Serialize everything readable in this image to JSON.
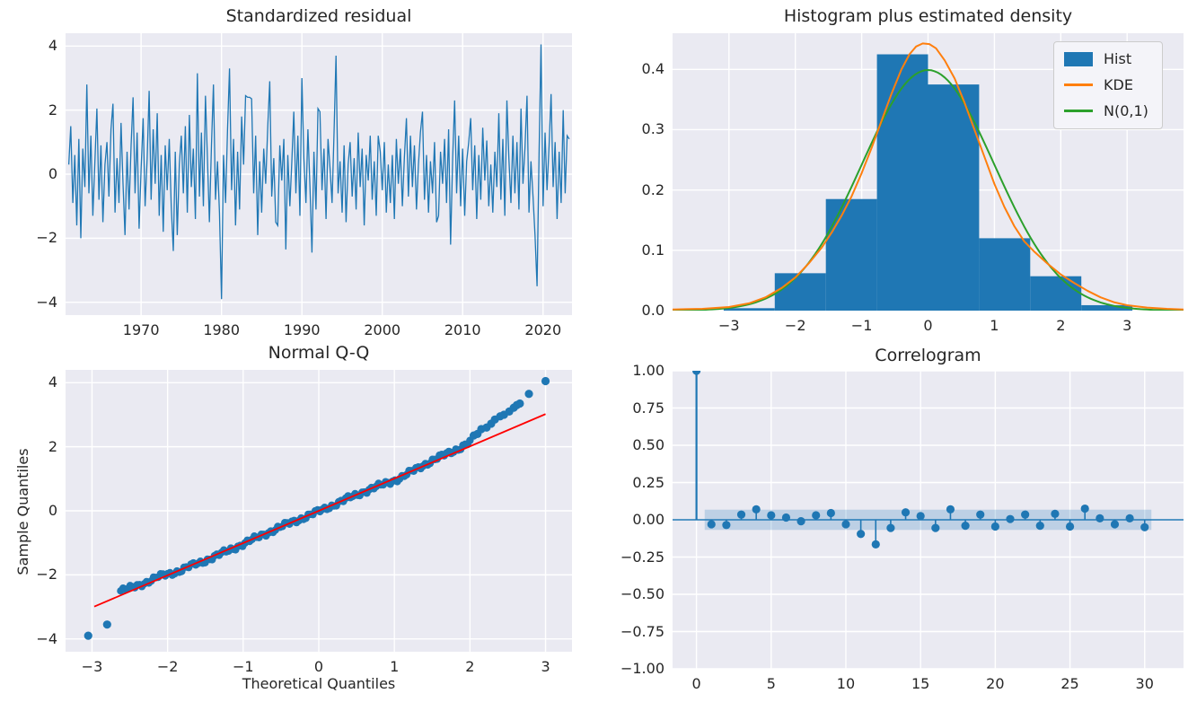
{
  "figure": {
    "background": "#ffffff",
    "axes_background": "#eaeaf2",
    "grid_color": "#ffffff",
    "text_color": "#262626"
  },
  "chart_data": [
    {
      "type": "line",
      "title": "Standardized residual",
      "color": "#1f77b4",
      "xlim": [
        1960.6,
        2023.6
      ],
      "ylim": [
        -4.4,
        4.4
      ],
      "xticks": {
        "values": [
          1970,
          1980,
          1990,
          2000,
          2010,
          2020
        ],
        "labels": [
          "1970",
          "1980",
          "1990",
          "2000",
          "2010",
          "2020"
        ]
      },
      "yticks": {
        "values": [
          -4,
          -2,
          0,
          2,
          4
        ],
        "labels": [
          "−4",
          "−2",
          "0",
          "2",
          "4"
        ]
      },
      "x_start": 1961.0,
      "x_step": 0.25,
      "values": [
        0.3,
        1.5,
        -0.9,
        0.6,
        -1.6,
        1.1,
        -2.0,
        0.8,
        -0.4,
        2.8,
        -0.6,
        1.2,
        -1.3,
        0.4,
        2.05,
        -0.8,
        0.9,
        -1.5,
        0.3,
        1.0,
        -0.7,
        1.4,
        2.2,
        -1.2,
        0.5,
        -0.9,
        1.6,
        -0.3,
        -1.9,
        0.7,
        -1.1,
        0.9,
        2.4,
        -0.6,
        1.3,
        -1.7,
        0.2,
        1.75,
        -1.0,
        0.5,
        2.6,
        -0.8,
        1.4,
        -0.3,
        1.9,
        -1.3,
        0.6,
        -1.8,
        0.9,
        -0.5,
        1.1,
        -1.0,
        -2.4,
        0.7,
        -1.9,
        0.3,
        1.2,
        -0.6,
        1.5,
        -1.2,
        1.85,
        -0.4,
        0.8,
        -1.4,
        3.15,
        -0.7,
        1.3,
        -1.0,
        2.45,
        0.5,
        -1.5,
        0.9,
        2.8,
        -0.8,
        0.4,
        -1.2,
        -3.9,
        0.6,
        -0.9,
        1.4,
        3.3,
        -0.5,
        1.1,
        -1.6,
        0.7,
        -1.1,
        1.8,
        0.3,
        2.45,
        2.4,
        2.4,
        2.35,
        -0.6,
        1.2,
        -1.9,
        0.4,
        -1.2,
        0.8,
        -0.3,
        1.5,
        2.9,
        -0.7,
        0.5,
        -1.5,
        -1.6,
        0.9,
        -0.2,
        1.1,
        -2.35,
        0.6,
        -1.0,
        0.4,
        1.95,
        -0.6,
        1.2,
        -1.3,
        3.0,
        0.5,
        -0.9,
        1.4,
        -0.4,
        -2.45,
        0.7,
        -1.1,
        2.05,
        1.95,
        -0.5,
        0.8,
        -1.4,
        1.1,
        0.2,
        -0.9,
        1.3,
        3.7,
        -0.6,
        0.4,
        -1.2,
        0.9,
        -1.5,
        0.3,
        1.0,
        -0.7,
        0.5,
        -1.1,
        1.3,
        -0.4,
        0.8,
        -1.6,
        0.6,
        -0.2,
        1.2,
        -0.8,
        0.4,
        -1.3,
        1.2,
        0.7,
        -0.5,
        1.0,
        -1.2,
        0.3,
        -0.9,
        0.6,
        -1.4,
        1.1,
        -0.3,
        0.8,
        -1.0,
        0.5,
        1.75,
        -0.7,
        1.2,
        -0.4,
        0.9,
        -1.1,
        0.3,
        1.3,
        1.95,
        -0.8,
        0.6,
        -1.2,
        0.4,
        -0.6,
        1.0,
        -1.5,
        -1.3,
        0.7,
        -0.3,
        1.1,
        -0.9,
        1.4,
        -2.2,
        0.5,
        2.3,
        -0.6,
        1.2,
        -1.0,
        0.8,
        -1.3,
        0.4,
        1.0,
        1.75,
        -0.5,
        0.9,
        -1.4,
        0.6,
        -0.8,
        1.45,
        -0.2,
        1.05,
        -1.0,
        0.3,
        -1.2,
        0.7,
        -0.4,
        1.9,
        -0.8,
        1.1,
        -1.3,
        2.3,
        0.5,
        -0.9,
        1.2,
        -0.6,
        1.0,
        -1.1,
        2.05,
        -0.3,
        0.8,
        2.45,
        -1.2,
        0.4,
        -0.7,
        -1.9,
        -3.5,
        0.6,
        4.05,
        -1.0,
        1.3,
        -0.5,
        0.9,
        2.5,
        -0.4,
        1.0,
        -1.4,
        0.7,
        -0.9,
        2.0,
        -0.6,
        1.2,
        1.1
      ]
    },
    {
      "type": "histogram",
      "title": "Histogram plus estimated density",
      "xlim": [
        -3.85,
        3.85
      ],
      "ylim": [
        0,
        0.46
      ],
      "xticks": {
        "values": [
          -3,
          -2,
          -1,
          0,
          1,
          2,
          3
        ],
        "labels": [
          "−3",
          "−2",
          "−1",
          "0",
          "1",
          "2",
          "3"
        ]
      },
      "yticks": {
        "values": [
          0,
          0.1,
          0.2,
          0.3,
          0.4
        ],
        "labels": [
          "0.0",
          "0.1",
          "0.2",
          "0.3",
          "0.4"
        ]
      },
      "bar_color": "#1f77b4",
      "bin_edges": [
        -3.08,
        -2.31,
        -1.54,
        -0.77,
        0,
        0.77,
        1.54,
        2.31,
        3.08
      ],
      "bin_heights": [
        0.004,
        0.062,
        0.185,
        0.425,
        0.375,
        0.12,
        0.057,
        0.009
      ],
      "kde": {
        "color": "#ff7f0e",
        "points": [
          [
            -3.85,
            0.002
          ],
          [
            -3.4,
            0.003
          ],
          [
            -3.0,
            0.006
          ],
          [
            -2.7,
            0.012
          ],
          [
            -2.45,
            0.022
          ],
          [
            -2.2,
            0.038
          ],
          [
            -2.0,
            0.055
          ],
          [
            -1.8,
            0.078
          ],
          [
            -1.6,
            0.105
          ],
          [
            -1.45,
            0.13
          ],
          [
            -1.3,
            0.158
          ],
          [
            -1.15,
            0.19
          ],
          [
            -1.0,
            0.228
          ],
          [
            -0.85,
            0.27
          ],
          [
            -0.7,
            0.315
          ],
          [
            -0.55,
            0.36
          ],
          [
            -0.4,
            0.4
          ],
          [
            -0.28,
            0.425
          ],
          [
            -0.18,
            0.438
          ],
          [
            -0.08,
            0.443
          ],
          [
            0.02,
            0.442
          ],
          [
            0.12,
            0.435
          ],
          [
            0.25,
            0.415
          ],
          [
            0.4,
            0.385
          ],
          [
            0.55,
            0.345
          ],
          [
            0.7,
            0.3
          ],
          [
            0.85,
            0.255
          ],
          [
            1.0,
            0.21
          ],
          [
            1.15,
            0.172
          ],
          [
            1.3,
            0.14
          ],
          [
            1.45,
            0.115
          ],
          [
            1.6,
            0.098
          ],
          [
            1.8,
            0.078
          ],
          [
            2.0,
            0.06
          ],
          [
            2.2,
            0.046
          ],
          [
            2.4,
            0.033
          ],
          [
            2.6,
            0.022
          ],
          [
            2.8,
            0.014
          ],
          [
            3.0,
            0.009
          ],
          [
            3.3,
            0.005
          ],
          [
            3.6,
            0.003
          ],
          [
            3.85,
            0.002
          ]
        ]
      },
      "normal": {
        "color": "#2ca02c",
        "mean": 0,
        "std": 1
      },
      "legend": [
        {
          "label": "Hist",
          "color": "#1f77b4",
          "type": "patch"
        },
        {
          "label": "KDE",
          "color": "#ff7f0e",
          "type": "line"
        },
        {
          "label": "N(0,1)",
          "color": "#2ca02c",
          "type": "line"
        }
      ]
    },
    {
      "type": "qq",
      "title": "Normal Q-Q",
      "xlabel": "Theoretical Quantiles",
      "ylabel": "Sample Quantiles",
      "xlim": [
        -3.35,
        3.35
      ],
      "ylim": [
        -4.4,
        4.4
      ],
      "xticks": {
        "values": [
          -3,
          -2,
          -1,
          0,
          1,
          2,
          3
        ],
        "labels": [
          "−3",
          "−2",
          "−1",
          "0",
          "1",
          "2",
          "3"
        ]
      },
      "yticks": {
        "values": [
          -4,
          -2,
          0,
          2,
          4
        ],
        "labels": [
          "−4",
          "−2",
          "0",
          "2",
          "4"
        ]
      },
      "point_color": "#1f77b4",
      "ref_line": {
        "color": "#ff0000",
        "x1": -2.97,
        "y1": -2.99,
        "x2": 3.0,
        "y2": 3.02
      },
      "rope": {
        "n": 150,
        "anchors": [
          [
            -2.62,
            -2.5
          ],
          [
            -2.5,
            -2.42
          ],
          [
            -2.38,
            -2.32
          ],
          [
            -2.25,
            -2.2
          ],
          [
            -2.12,
            -2.06
          ],
          [
            -2.0,
            -1.98
          ],
          [
            -1.85,
            -1.88
          ],
          [
            -1.7,
            -1.73
          ],
          [
            -1.55,
            -1.6
          ],
          [
            -1.4,
            -1.45
          ],
          [
            -1.2,
            -1.25
          ],
          [
            -1.0,
            -1.03
          ],
          [
            -0.8,
            -0.82
          ],
          [
            -0.6,
            -0.6
          ],
          [
            -0.4,
            -0.4
          ],
          [
            -0.2,
            -0.21
          ],
          [
            0.0,
            -0.02
          ],
          [
            0.2,
            0.19
          ],
          [
            0.4,
            0.4
          ],
          [
            0.6,
            0.6
          ],
          [
            0.8,
            0.78
          ],
          [
            1.0,
            0.95
          ],
          [
            1.1,
            1.05
          ],
          [
            1.25,
            1.25
          ],
          [
            1.4,
            1.45
          ],
          [
            1.55,
            1.62
          ],
          [
            1.7,
            1.78
          ],
          [
            1.85,
            1.95
          ],
          [
            1.95,
            2.08
          ],
          [
            2.0,
            2.15
          ]
        ]
      },
      "outliers": [
        [
          -3.05,
          -3.9
        ],
        [
          -2.8,
          -3.55
        ],
        [
          2.05,
          2.35
        ],
        [
          2.1,
          2.4
        ],
        [
          2.15,
          2.55
        ],
        [
          2.22,
          2.6
        ],
        [
          2.28,
          2.72
        ],
        [
          2.33,
          2.85
        ],
        [
          2.4,
          2.95
        ],
        [
          2.45,
          3.0
        ],
        [
          2.52,
          3.1
        ],
        [
          2.58,
          3.22
        ],
        [
          2.62,
          3.3
        ],
        [
          2.66,
          3.35
        ],
        [
          2.78,
          3.65
        ],
        [
          3.0,
          4.05
        ]
      ]
    },
    {
      "type": "stem",
      "title": "Correlogram",
      "xlim": [
        -1.6,
        32.6
      ],
      "ylim": [
        -1,
        1
      ],
      "xticks": {
        "values": [
          0,
          5,
          10,
          15,
          20,
          25,
          30
        ],
        "labels": [
          "0",
          "5",
          "10",
          "15",
          "20",
          "25",
          "30"
        ]
      },
      "yticks": {
        "values": [
          1,
          0.75,
          0.5,
          0.25,
          0,
          -0.25,
          -0.5,
          -0.75,
          -1
        ],
        "labels": [
          "1.00",
          "0.75",
          "0.50",
          "0.25",
          "0.00",
          "−0.25",
          "−0.50",
          "−0.75",
          "−1.00"
        ]
      },
      "color": "#1f77b4",
      "conf_band": {
        "x_min": 0.55,
        "x_max": 30.45,
        "half_width": 0.068,
        "color": "#1f77b4",
        "opacity": 0.22
      },
      "acf": [
        1,
        -0.03,
        -0.035,
        0.035,
        0.07,
        0.03,
        0.015,
        -0.01,
        0.03,
        0.045,
        -0.03,
        -0.095,
        -0.165,
        -0.055,
        0.05,
        0.025,
        -0.055,
        0.07,
        -0.04,
        0.035,
        -0.045,
        0.005,
        0.035,
        -0.04,
        0.04,
        -0.045,
        0.075,
        0.01,
        -0.03,
        0.01,
        -0.05
      ]
    }
  ]
}
